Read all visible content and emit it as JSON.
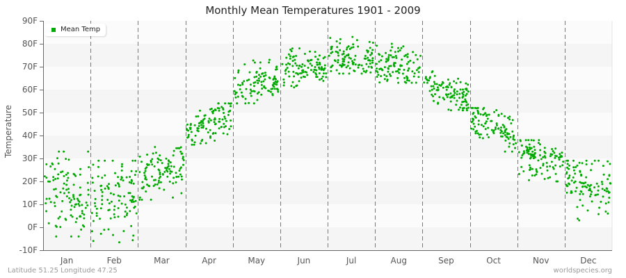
{
  "chart_data": {
    "type": "scatter",
    "title": "Monthly Mean Temperatures 1901 - 2009",
    "xlabel": "",
    "ylabel": "Temperature",
    "ylim": [
      -10,
      90
    ],
    "yticks": [
      "-10F",
      "0F",
      "10F",
      "20F",
      "30F",
      "40F",
      "50F",
      "60F",
      "70F",
      "80F",
      "90F"
    ],
    "categories": [
      "Jan",
      "Feb",
      "Mar",
      "Apr",
      "May",
      "Jun",
      "Jul",
      "Aug",
      "Sep",
      "Oct",
      "Nov",
      "Dec"
    ],
    "legend": [
      {
        "name": "Mean Temp",
        "color": "#00aa00"
      }
    ],
    "legend_position": "top-left",
    "grid": "alternating horizontal bands, dashed vertical month separators",
    "series": [
      {
        "name": "Mean Temp",
        "years": "1901-2009",
        "points_per_month": 109,
        "monthly_summary": [
          {
            "month": "Jan",
            "mean": 14,
            "min": -4,
            "max": 33
          },
          {
            "month": "Feb",
            "mean": 13,
            "min": -9,
            "max": 29
          },
          {
            "month": "Mar",
            "mean": 24,
            "min": 12,
            "max": 35
          },
          {
            "month": "Apr",
            "mean": 46,
            "min": 36,
            "max": 54
          },
          {
            "month": "May",
            "mean": 62,
            "min": 54,
            "max": 73
          },
          {
            "month": "Jun",
            "mean": 70,
            "min": 61,
            "max": 78
          },
          {
            "month": "Jul",
            "mean": 74,
            "min": 67,
            "max": 83
          },
          {
            "month": "Aug",
            "mean": 71,
            "min": 63,
            "max": 80
          },
          {
            "month": "Sep",
            "mean": 60,
            "min": 51,
            "max": 68
          },
          {
            "month": "Oct",
            "mean": 44,
            "min": 33,
            "max": 52
          },
          {
            "month": "Nov",
            "mean": 30,
            "min": 20,
            "max": 38
          },
          {
            "month": "Dec",
            "mean": 18,
            "min": 2,
            "max": 29
          }
        ]
      }
    ]
  },
  "footer": {
    "location": "Latitude 51.25 Longitude 47.25",
    "source": "worldspecies.org"
  },
  "colors": {
    "point": "#00aa00",
    "band_dark": "#f5f5f5",
    "band_light": "#fbfbfb",
    "axis": "#666666",
    "separator": "#777777"
  }
}
